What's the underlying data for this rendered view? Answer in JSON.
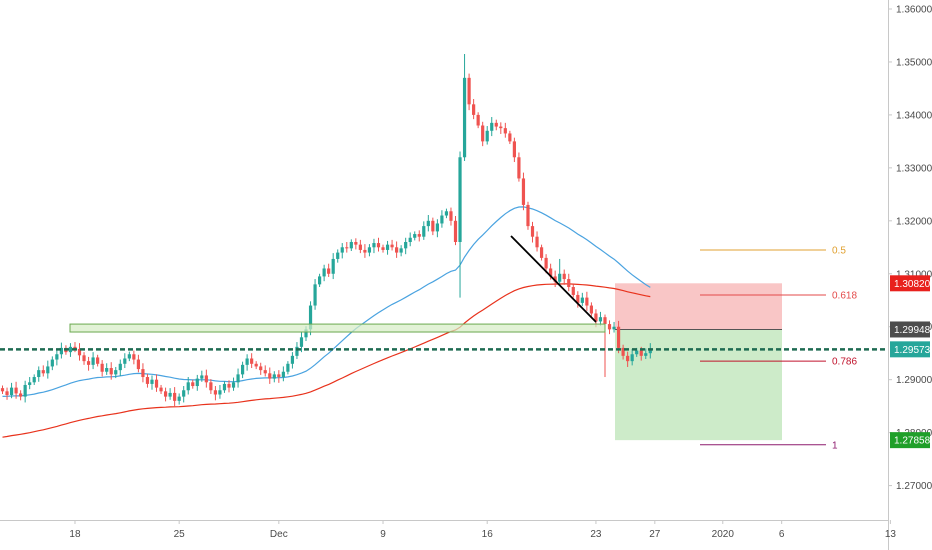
{
  "chart_data": {
    "type": "candlestick",
    "symbol_context": "",
    "x_ticks": [
      {
        "label": "18",
        "idx": 16
      },
      {
        "label": "25",
        "idx": 39
      },
      {
        "label": "Dec",
        "idx": 61
      },
      {
        "label": "9",
        "idx": 84
      },
      {
        "label": "16",
        "idx": 107
      },
      {
        "label": "23",
        "idx": 131
      },
      {
        "label": "27",
        "idx": 144
      },
      {
        "label": "2020",
        "idx": 159
      },
      {
        "label": "6",
        "idx": 172
      },
      {
        "label": "13",
        "idx": 196
      }
    ],
    "y_ticks": [
      "1.36000",
      "1.35000",
      "1.34000",
      "1.33000",
      "1.32000",
      "1.31000",
      "1.30000",
      "1.29000",
      "1.28000",
      "1.27000"
    ],
    "ylim": [
      1.2635,
      1.3617
    ],
    "price_tags": [
      {
        "label": "1.30820",
        "value": 1.3082,
        "color": "#e8211d"
      },
      {
        "label": "1.29948",
        "value": 1.29948,
        "color": "#4d4d4d"
      },
      {
        "label": "1.29573",
        "value": 1.29573,
        "color": "#26a69a"
      },
      {
        "label": "1.27858",
        "value": 1.27858,
        "color": "#1f9f29"
      }
    ],
    "fib_levels": [
      {
        "label": "0.5",
        "value": 1.3145,
        "color": "#e0a030"
      },
      {
        "label": "0.618",
        "value": 1.306,
        "color": "#e34a4a"
      },
      {
        "label": "0.786",
        "value": 1.2935,
        "color": "#c0132c"
      },
      {
        "label": "1",
        "value": 1.2777,
        "color": "#8e1b6e"
      }
    ],
    "levels": {
      "current_price": 1.29573,
      "entry": 1.29948,
      "stop": 1.3082,
      "target": 1.27858,
      "resistance_zone": [
        1.299,
        1.3005
      ]
    },
    "colors": {
      "up": "#26a69a",
      "down": "#ef5350",
      "ma_fast": "#4aa3e0",
      "ma_slow": "#e8321c",
      "stop_zone": "#f7b8b8",
      "target_zone": "#c4e8c0",
      "zone": "#d5ecc4",
      "trend_line": "#000000"
    },
    "closes": [
      1.2878,
      1.2871,
      1.2885,
      1.2874,
      1.2868,
      1.289,
      1.2895,
      1.2905,
      1.2918,
      1.2912,
      1.2925,
      1.2938,
      1.2948,
      1.296,
      1.2952,
      1.2962,
      1.2958,
      1.2946,
      1.2935,
      1.2928,
      1.2942,
      1.293,
      1.2915,
      1.2922,
      1.291,
      1.2918,
      1.293,
      1.294,
      1.2948,
      1.2938,
      1.292,
      1.2905,
      1.2892,
      1.29,
      1.2885,
      1.2878,
      1.2868,
      1.2875,
      1.286,
      1.2868,
      1.288,
      1.2895,
      1.2888,
      1.2902,
      1.2908,
      1.2895,
      1.288,
      1.2872,
      1.288,
      1.2892,
      1.2885,
      1.2895,
      1.291,
      1.2928,
      1.294,
      1.293,
      1.2925,
      1.2918,
      1.2912,
      1.2902,
      1.291,
      1.2905,
      1.2915,
      1.293,
      1.2945,
      1.2962,
      1.298,
      1.2995,
      1.304,
      1.308,
      1.3095,
      1.311,
      1.31,
      1.3128,
      1.314,
      1.315,
      1.3148,
      1.316,
      1.3155,
      1.3145,
      1.314,
      1.315,
      1.3158,
      1.315,
      1.3145,
      1.3155,
      1.315,
      1.314,
      1.3148,
      1.316,
      1.3168,
      1.3175,
      1.317,
      1.319,
      1.32,
      1.318,
      1.3195,
      1.321,
      1.3218,
      1.32,
      1.316,
      1.332,
      1.347,
      1.342,
      1.34,
      1.338,
      1.335,
      1.337,
      1.3385,
      1.3378,
      1.3375,
      1.3365,
      1.335,
      1.332,
      1.328,
      1.323,
      1.319,
      1.317,
      1.315,
      1.313,
      1.311,
      1.3095,
      1.3085,
      1.31,
      1.309,
      1.3075,
      1.306,
      1.3045,
      1.3055,
      1.304,
      1.3025,
      1.301,
      1.3018,
      1.3005,
      1.2995,
      1.3,
      1.296,
      1.2945,
      1.2935,
      1.2948,
      1.2955,
      1.2945,
      1.295,
      1.2958
    ]
  }
}
